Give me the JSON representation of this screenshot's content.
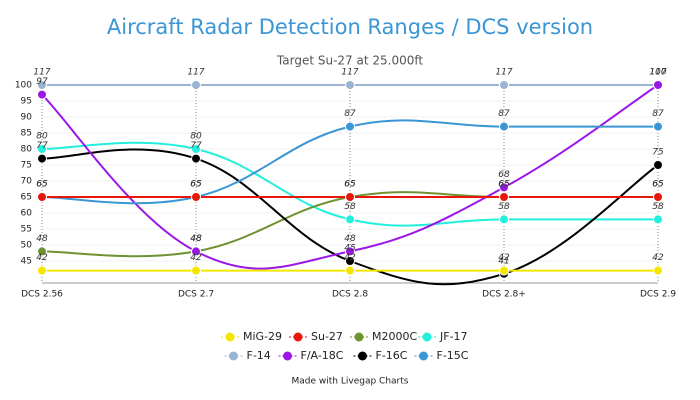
{
  "chart_data": {
    "type": "line",
    "title": "Aircraft Radar Detection Ranges / DCS version",
    "subtitle": "Target Su-27 at 25.000ft",
    "footer": "Made with Livegap Charts",
    "categories": [
      "DCS 2.56",
      "DCS 2.7",
      "DCS 2.8",
      "DCS 2.8+",
      "DCS 2.9"
    ],
    "ylim": [
      40,
      100
    ],
    "yticks": [
      45,
      50,
      55,
      60,
      65,
      70,
      75,
      80,
      85,
      90,
      95,
      100
    ],
    "grid": true,
    "series": [
      {
        "name": "MiG-29",
        "color": "#f5e600",
        "values": [
          42,
          42,
          42,
          42,
          42
        ]
      },
      {
        "name": "Su-27",
        "color": "#e8170c",
        "values": [
          65,
          65,
          65,
          65,
          65
        ]
      },
      {
        "name": "M2000C",
        "color": "#6f9330",
        "values": [
          48,
          48,
          65,
          65,
          65
        ]
      },
      {
        "name": "JF-17",
        "color": "#22f0dc",
        "values": [
          80,
          80,
          58,
          58,
          58
        ]
      },
      {
        "name": "F-14",
        "color": "#9ab4d2",
        "values": [
          117,
          117,
          117,
          117,
          117
        ]
      },
      {
        "name": "F/A-18C",
        "color": "#9b17e8",
        "values": [
          97,
          48,
          48,
          68,
          100
        ]
      },
      {
        "name": "F-16C",
        "color": "#000000",
        "values": [
          77,
          77,
          45,
          41,
          75
        ]
      },
      {
        "name": "F-15C",
        "color": "#3a96d4",
        "values": [
          65,
          65,
          87,
          87,
          87
        ]
      }
    ]
  }
}
